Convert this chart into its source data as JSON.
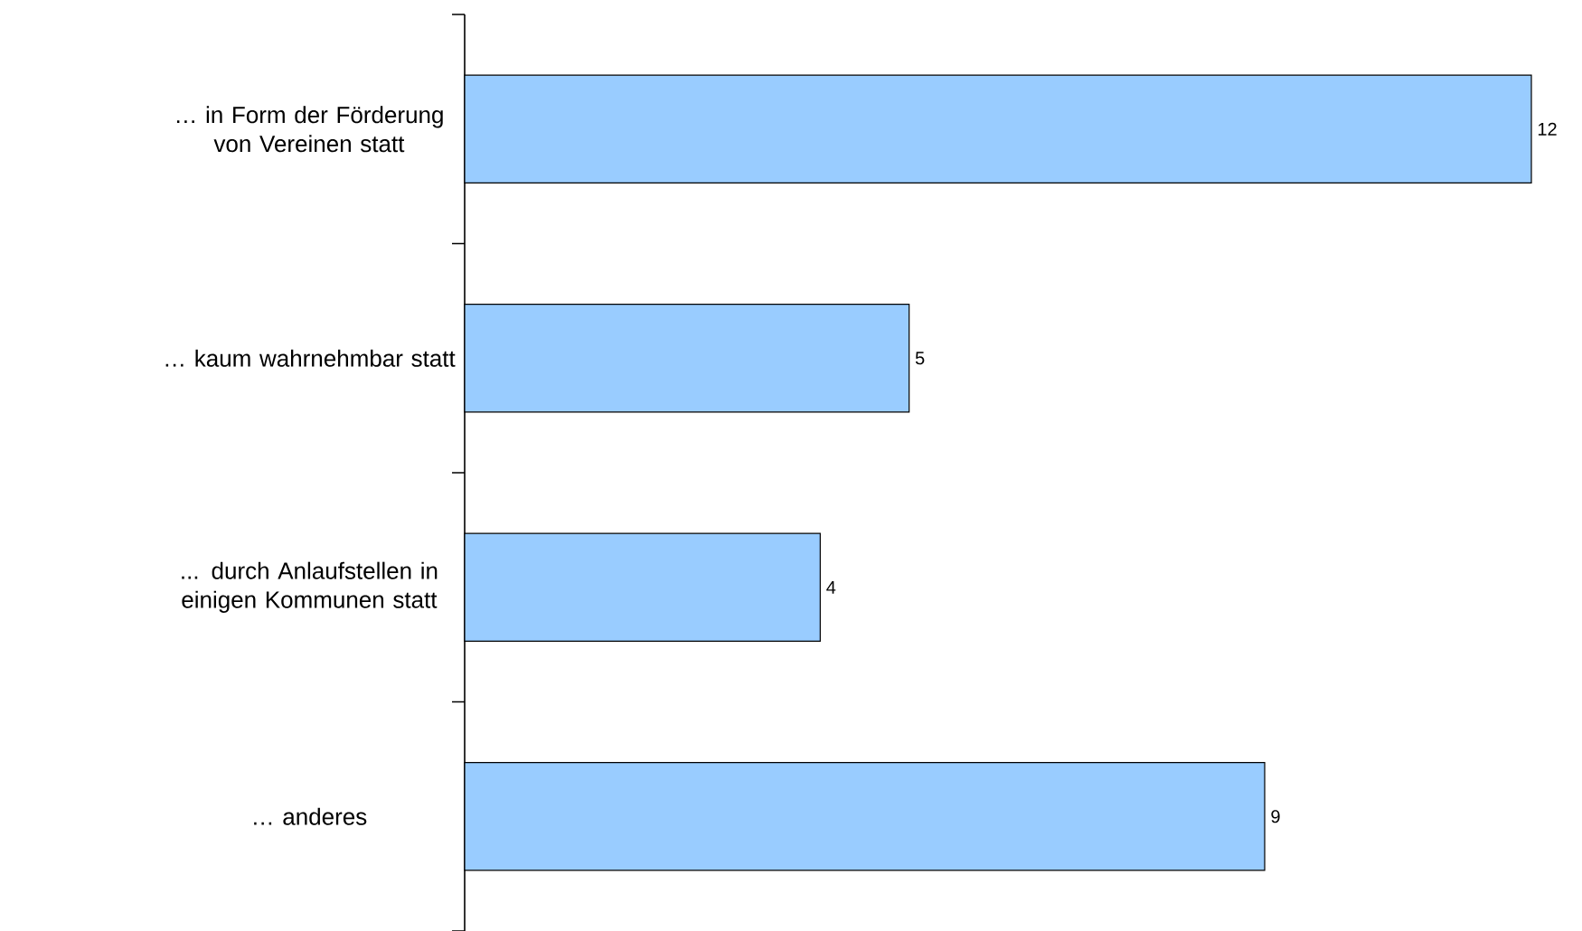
{
  "chart_data": {
    "type": "bar",
    "orientation": "horizontal",
    "categories": [
      "… in Form der Förderung von Vereinen statt",
      "… kaum wahrnehmbar statt",
      "... durch Anlaufstellen in einigen Kommunen statt",
      "… anderes"
    ],
    "values": [
      12,
      5,
      4,
      9
    ],
    "color": "#99ccff",
    "data_labels": true
  }
}
